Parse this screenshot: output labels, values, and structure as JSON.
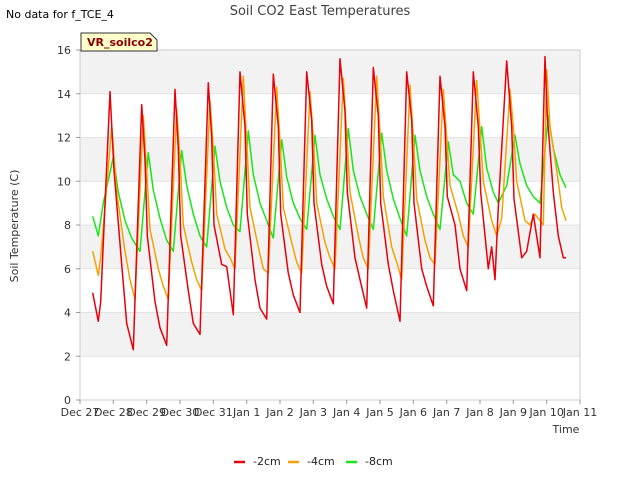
{
  "header": {
    "nodata": "No data for f_TCE_4"
  },
  "badge": "VR_soilco2",
  "chart_data": {
    "type": "line",
    "title": "Soil CO2 East Temperatures",
    "xlabel": "Time",
    "ylabel": "Soil Temperature (C)",
    "ylim": [
      0,
      16
    ],
    "yticks": [
      0,
      2,
      4,
      6,
      8,
      10,
      12,
      14,
      16
    ],
    "xlim": [
      0,
      15
    ],
    "xticks": [
      {
        "pos": 0,
        "label": "Dec 27"
      },
      {
        "pos": 1,
        "label": "Dec 28"
      },
      {
        "pos": 2,
        "label": "Dec 29"
      },
      {
        "pos": 3,
        "label": "Dec 30"
      },
      {
        "pos": 4,
        "label": "Dec 31"
      },
      {
        "pos": 5,
        "label": "Jan 1"
      },
      {
        "pos": 6,
        "label": "Jan 2"
      },
      {
        "pos": 7,
        "label": "Jan 3"
      },
      {
        "pos": 8,
        "label": "Jan 4"
      },
      {
        "pos": 9,
        "label": "Jan 5"
      },
      {
        "pos": 10,
        "label": "Jan 6"
      },
      {
        "pos": 11,
        "label": "Jan 7"
      },
      {
        "pos": 12,
        "label": "Jan 8"
      },
      {
        "pos": 13,
        "label": "Jan 9"
      },
      {
        "pos": 14,
        "label": "Jan 10"
      },
      {
        "pos": 15,
        "label": "Jan 11"
      }
    ],
    "grid": "horizontal bands",
    "legend_position": "bottom",
    "series": [
      {
        "name": "-2cm",
        "color": "#e8000b",
        "x": [
          0.38,
          0.55,
          0.62,
          0.9,
          1.02,
          1.25,
          1.4,
          1.6,
          1.85,
          1.95,
          2.02,
          2.25,
          2.4,
          2.6,
          2.85,
          2.95,
          3.02,
          3.25,
          3.4,
          3.6,
          3.85,
          3.95,
          4.02,
          4.25,
          4.4,
          4.6,
          4.8,
          4.95,
          5.02,
          5.25,
          5.4,
          5.6,
          5.8,
          5.95,
          6.02,
          6.25,
          6.4,
          6.6,
          6.8,
          6.95,
          7.02,
          7.25,
          7.4,
          7.6,
          7.8,
          7.95,
          8.02,
          8.25,
          8.4,
          8.6,
          8.8,
          8.95,
          9.02,
          9.25,
          9.4,
          9.6,
          9.8,
          9.95,
          10.02,
          10.25,
          10.4,
          10.6,
          10.8,
          10.95,
          11.02,
          11.25,
          11.4,
          11.6,
          11.8,
          11.95,
          12.02,
          12.25,
          12.35,
          12.45,
          12.55,
          12.8,
          12.95,
          13.02,
          13.25,
          13.4,
          13.6,
          13.8,
          13.95,
          14.02,
          14.2,
          14.35,
          14.5,
          14.58
        ],
        "y": [
          4.9,
          3.6,
          4.5,
          14.1,
          10.5,
          6.2,
          3.5,
          2.3,
          13.5,
          11.0,
          7.5,
          4.5,
          3.3,
          2.5,
          14.2,
          11.5,
          7.5,
          5.0,
          3.5,
          3.0,
          14.5,
          12.0,
          8.0,
          6.2,
          6.1,
          3.9,
          15.0,
          12.5,
          8.5,
          5.5,
          4.2,
          3.7,
          14.9,
          12.5,
          8.5,
          5.8,
          4.8,
          4.0,
          15.0,
          12.8,
          9.0,
          6.2,
          5.2,
          4.4,
          15.6,
          13.2,
          9.5,
          6.5,
          5.5,
          4.2,
          15.2,
          13.0,
          9.0,
          6.2,
          5.0,
          3.6,
          15.0,
          12.8,
          9.0,
          6.0,
          5.2,
          4.3,
          14.8,
          12.5,
          9.3,
          8.0,
          6.0,
          5.0,
          15.0,
          12.5,
          9.5,
          6.0,
          7.0,
          5.5,
          8.8,
          15.5,
          12.5,
          9.2,
          6.5,
          6.8,
          8.5,
          6.5,
          15.7,
          13.0,
          9.5,
          7.5,
          6.5,
          6.5
        ]
      },
      {
        "name": "-4cm",
        "color": "#f5a100",
        "x": [
          0.38,
          0.55,
          0.62,
          0.95,
          1.1,
          1.35,
          1.5,
          1.65,
          1.9,
          2.0,
          2.1,
          2.35,
          2.5,
          2.65,
          2.9,
          3.0,
          3.1,
          3.35,
          3.5,
          3.65,
          3.9,
          4.0,
          4.1,
          4.35,
          4.5,
          4.65,
          4.9,
          5.0,
          5.1,
          5.35,
          5.5,
          5.65,
          5.9,
          6.0,
          6.1,
          6.35,
          6.5,
          6.65,
          6.9,
          7.0,
          7.1,
          7.35,
          7.5,
          7.65,
          7.9,
          8.0,
          8.1,
          8.35,
          8.5,
          8.65,
          8.9,
          9.0,
          9.1,
          9.35,
          9.5,
          9.65,
          9.9,
          10.0,
          10.1,
          10.35,
          10.5,
          10.65,
          10.9,
          11.0,
          11.1,
          11.35,
          11.5,
          11.65,
          11.9,
          12.0,
          12.1,
          12.35,
          12.5,
          12.65,
          12.9,
          13.0,
          13.1,
          13.35,
          13.5,
          13.65,
          13.9,
          14.0,
          14.1,
          14.3,
          14.45,
          14.58
        ],
        "y": [
          6.8,
          5.7,
          6.5,
          12.5,
          9.5,
          6.8,
          5.5,
          4.6,
          13.0,
          10.5,
          7.8,
          6.0,
          5.2,
          4.6,
          13.3,
          11.0,
          8.0,
          6.3,
          5.5,
          5.0,
          13.7,
          11.5,
          8.5,
          6.9,
          6.5,
          6.0,
          14.8,
          11.8,
          8.8,
          7.0,
          6.0,
          5.8,
          14.3,
          11.8,
          8.8,
          7.2,
          6.3,
          5.8,
          14.1,
          12.0,
          9.0,
          7.2,
          6.5,
          6.0,
          14.7,
          12.2,
          9.5,
          7.5,
          6.5,
          6.0,
          14.8,
          12.2,
          9.3,
          7.0,
          6.3,
          5.5,
          14.4,
          12.0,
          9.2,
          7.3,
          6.5,
          6.2,
          14.2,
          12.0,
          9.8,
          8.5,
          7.5,
          7.0,
          14.6,
          12.3,
          10.0,
          8.2,
          7.5,
          8.3,
          14.2,
          12.5,
          10.0,
          8.2,
          8.0,
          8.5,
          8.0,
          15.1,
          12.5,
          10.5,
          8.8,
          8.2
        ]
      },
      {
        "name": "-8cm",
        "color": "#19e619",
        "x": [
          0.38,
          0.55,
          0.7,
          1.0,
          1.15,
          1.35,
          1.55,
          1.8,
          2.05,
          2.2,
          2.4,
          2.6,
          2.8,
          3.05,
          3.2,
          3.4,
          3.6,
          3.8,
          4.05,
          4.2,
          4.4,
          4.6,
          4.8,
          5.05,
          5.2,
          5.4,
          5.6,
          5.8,
          6.05,
          6.2,
          6.4,
          6.6,
          6.8,
          7.05,
          7.2,
          7.4,
          7.6,
          7.8,
          8.05,
          8.2,
          8.4,
          8.6,
          8.8,
          9.05,
          9.2,
          9.4,
          9.6,
          9.8,
          10.05,
          10.2,
          10.4,
          10.6,
          10.8,
          11.05,
          11.2,
          11.4,
          11.6,
          11.8,
          12.05,
          12.2,
          12.4,
          12.55,
          12.8,
          13.05,
          13.2,
          13.4,
          13.6,
          13.8,
          14.05,
          14.2,
          14.4,
          14.58
        ],
        "y": [
          8.4,
          7.5,
          9.0,
          11.1,
          9.5,
          8.2,
          7.4,
          6.8,
          11.3,
          9.6,
          8.3,
          7.3,
          6.8,
          11.4,
          9.8,
          8.5,
          7.5,
          7.0,
          11.6,
          10.0,
          8.8,
          8.0,
          7.7,
          12.3,
          10.3,
          9.0,
          8.2,
          7.4,
          11.9,
          10.2,
          9.0,
          8.3,
          7.8,
          12.1,
          10.3,
          9.2,
          8.4,
          7.8,
          12.4,
          10.5,
          9.3,
          8.5,
          7.8,
          12.2,
          10.5,
          9.2,
          8.3,
          7.5,
          12.1,
          10.5,
          9.3,
          8.5,
          7.8,
          11.8,
          10.3,
          10.0,
          9.0,
          8.5,
          12.5,
          10.6,
          9.5,
          9.0,
          9.8,
          12.1,
          10.8,
          9.8,
          9.3,
          9.0,
          13.0,
          11.5,
          10.3,
          9.7
        ]
      }
    ]
  }
}
